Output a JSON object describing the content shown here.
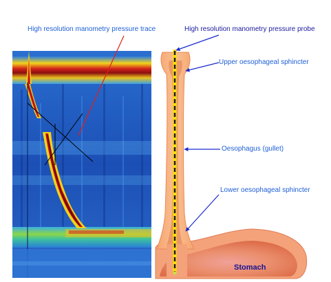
{
  "labels": {
    "pressure_trace": "High resolution manometry pressure trace",
    "pressure_probe": "High resolution manometry pressure probe",
    "upper_sphincter": "Upper oesophageal sphincter",
    "oesophagus": "Oesophagus (gullet)",
    "lower_sphincter": "Lower oesophageal sphincter",
    "stomach": "Stomach"
  },
  "colors": {
    "label_text": "#1e5fd6",
    "stomach_text": "#14149a",
    "pointer_red": "#e0201a",
    "pointer_blue": "#1a2ad0",
    "trace_background": "#1a4fb8",
    "tissue_outer": "#f7b27e",
    "tissue_inner": "#d9603c",
    "probe_yellow": "#ffe100"
  }
}
